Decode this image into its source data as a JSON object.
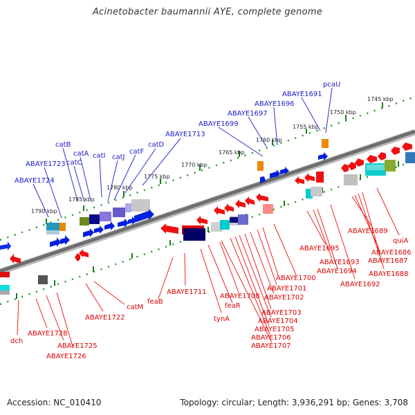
{
  "title": "Acinetobacter baumannii AYE, complete genome",
  "footer": {
    "accession": "Accession: NC_010410",
    "stats": "Topology: circular; Length: 3,936,291 bp; Genes: 3,708"
  },
  "colors": {
    "forward_gene_label": "#1a1acc",
    "reverse_gene_label": "#dd0000",
    "forward_cds": "#0022ee",
    "reverse_cds": "#ee1111",
    "backbone": "#777777",
    "scale_dots": "#229922"
  },
  "scale_labels": [
    "1790 kbp",
    "1785 kbp",
    "1780 kbp",
    "1775 kbp",
    "1770 kbp",
    "1765 kbp",
    "1760 kbp",
    "1755 kbp",
    "1750 kbp",
    "1745 kbp"
  ],
  "forward_labels": [
    "catB",
    "catC",
    "catA",
    "catI",
    "catJ",
    "catF",
    "catD",
    "ABAYE1713",
    "ABAYE1723",
    "ABAYE1724",
    "ABAYE1699",
    "ABAYE1697",
    "ABAYE1696",
    "ABAYE1691",
    "pcaU"
  ],
  "reverse_labels": [
    "dch",
    "ABAYE1728",
    "ABAYE1725",
    "ABAYE1726",
    "ABAYE1722",
    "catM",
    "feaB",
    "ABAYE1711",
    "tynA",
    "feaR",
    "ABAYE1708",
    "ABAYE1707",
    "ABAYE1706",
    "ABAYE1705",
    "ABAYE1704",
    "ABAYE1703",
    "ABAYE1702",
    "ABAYE1701",
    "ABAYE1700",
    "ABAYE1695",
    "ABAYE1693",
    "ABAYE1694",
    "ABAYE1692",
    "ABAYE1689",
    "ABAYE1686",
    "ABAYE1687",
    "ABAYE1688",
    "quiA"
  ]
}
